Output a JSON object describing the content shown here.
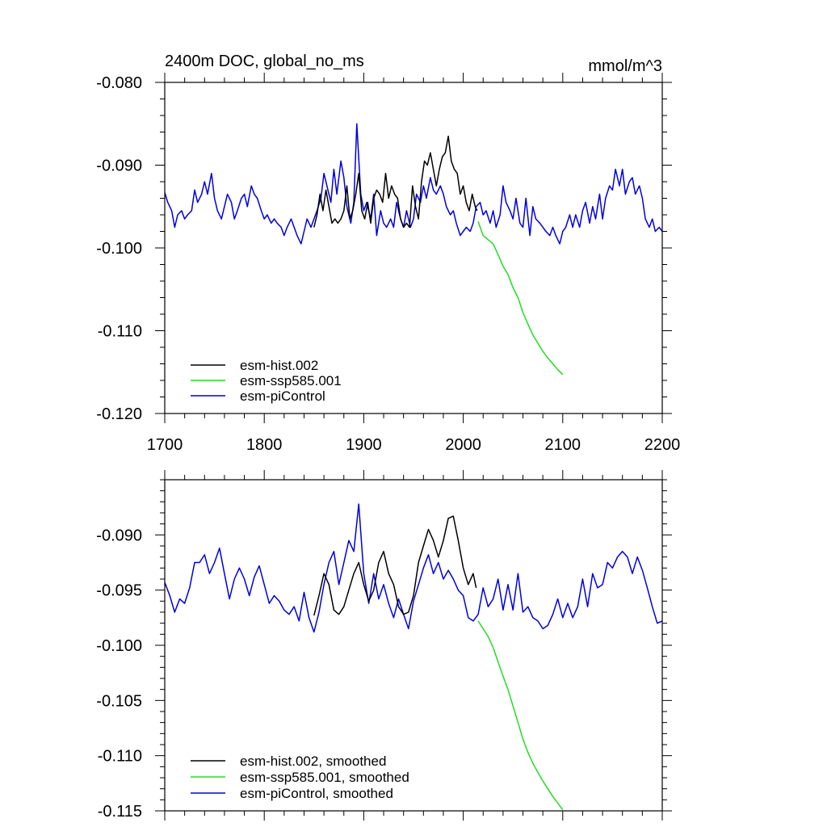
{
  "chart_data": [
    {
      "type": "line",
      "title": "2400m DOC, global_no_ms",
      "units": "mmol/m^3",
      "xlim": [
        1700,
        2200
      ],
      "ylim": [
        -0.12,
        -0.08
      ],
      "xticks": [
        1700,
        1800,
        1900,
        2000,
        2100,
        2200
      ],
      "xtick_labels": [
        "1700",
        "1800",
        "1900",
        "2000",
        "2100",
        "2200"
      ],
      "yticks": [
        -0.08,
        -0.09,
        -0.1,
        -0.11,
        -0.12
      ],
      "ytick_labels": [
        "-0.080",
        "-0.090",
        "-0.100",
        "-0.110",
        "-0.120"
      ],
      "legend_position": "bottom-left",
      "series": [
        {
          "name": "esm-hist.002",
          "color": "#000000",
          "x": [
            1850,
            1853,
            1856,
            1859,
            1862,
            1865,
            1868,
            1871,
            1874,
            1877,
            1880,
            1883,
            1886,
            1889,
            1892,
            1895,
            1898,
            1901,
            1904,
            1907,
            1910,
            1913,
            1916,
            1919,
            1922,
            1925,
            1928,
            1931,
            1934,
            1937,
            1940,
            1943,
            1946,
            1949,
            1952,
            1955,
            1958,
            1961,
            1964,
            1967,
            1970,
            1973,
            1976,
            1979,
            1982,
            1985,
            1988,
            1991,
            1994,
            1997,
            2000,
            2003,
            2006,
            2009,
            2012,
            2014
          ],
          "values": [
            -0.0975,
            -0.096,
            -0.0935,
            -0.0955,
            -0.093,
            -0.095,
            -0.097,
            -0.0965,
            -0.097,
            -0.0965,
            -0.0955,
            -0.0925,
            -0.0965,
            -0.0955,
            -0.0935,
            -0.091,
            -0.0955,
            -0.0965,
            -0.0945,
            -0.097,
            -0.094,
            -0.093,
            -0.0935,
            -0.0945,
            -0.091,
            -0.094,
            -0.0925,
            -0.0935,
            -0.094,
            -0.0965,
            -0.0975,
            -0.097,
            -0.0975,
            -0.0925,
            -0.095,
            -0.0965,
            -0.092,
            -0.0895,
            -0.09,
            -0.0885,
            -0.0905,
            -0.0925,
            -0.0905,
            -0.089,
            -0.0885,
            -0.0865,
            -0.0895,
            -0.0905,
            -0.091,
            -0.0935,
            -0.0925,
            -0.0945,
            -0.0955,
            -0.0935,
            -0.095,
            -0.0955
          ]
        },
        {
          "name": "esm-ssp585.001",
          "color": "#22dd22",
          "x": [
            2015,
            2020,
            2025,
            2030,
            2035,
            2040,
            2045,
            2050,
            2055,
            2060,
            2065,
            2070,
            2075,
            2080,
            2085,
            2090,
            2095,
            2100
          ],
          "values": [
            -0.0968,
            -0.0985,
            -0.099,
            -0.0995,
            -0.1008,
            -0.1022,
            -0.1032,
            -0.1048,
            -0.106,
            -0.1078,
            -0.1092,
            -0.1105,
            -0.1115,
            -0.1125,
            -0.1133,
            -0.114,
            -0.1147,
            -0.1153
          ]
        },
        {
          "name": "esm-piControl",
          "color": "#0000dd",
          "x": [
            1700,
            1703,
            1707,
            1710,
            1713,
            1717,
            1720,
            1723,
            1727,
            1730,
            1733,
            1737,
            1740,
            1743,
            1747,
            1750,
            1753,
            1757,
            1760,
            1763,
            1767,
            1770,
            1773,
            1777,
            1780,
            1783,
            1787,
            1790,
            1793,
            1797,
            1800,
            1803,
            1807,
            1810,
            1813,
            1817,
            1820,
            1823,
            1827,
            1830,
            1833,
            1837,
            1840,
            1843,
            1847,
            1850,
            1853,
            1857,
            1860,
            1863,
            1867,
            1870,
            1873,
            1877,
            1880,
            1883,
            1887,
            1890,
            1893,
            1897,
            1900,
            1903,
            1907,
            1910,
            1913,
            1917,
            1920,
            1923,
            1927,
            1930,
            1933,
            1937,
            1940,
            1943,
            1947,
            1950,
            1953,
            1957,
            1960,
            1963,
            1967,
            1970,
            1973,
            1977,
            1980,
            1983,
            1987,
            1990,
            1993,
            1997,
            2000,
            2003,
            2007,
            2010,
            2013,
            2017,
            2020,
            2023,
            2027,
            2030,
            2033,
            2037,
            2040,
            2043,
            2047,
            2050,
            2053,
            2057,
            2060,
            2063,
            2067,
            2070,
            2073,
            2077,
            2080,
            2083,
            2087,
            2090,
            2093,
            2097,
            2100,
            2103,
            2107,
            2110,
            2113,
            2117,
            2120,
            2123,
            2127,
            2130,
            2133,
            2137,
            2140,
            2143,
            2147,
            2150,
            2153,
            2157,
            2160,
            2163,
            2167,
            2170,
            2173,
            2177,
            2180,
            2183,
            2187,
            2190,
            2193,
            2197,
            2200
          ],
          "values": [
            -0.0933,
            -0.0945,
            -0.0955,
            -0.0975,
            -0.096,
            -0.0955,
            -0.0965,
            -0.096,
            -0.0955,
            -0.093,
            -0.0945,
            -0.0935,
            -0.092,
            -0.0935,
            -0.091,
            -0.094,
            -0.0955,
            -0.0965,
            -0.095,
            -0.0935,
            -0.0945,
            -0.0965,
            -0.0955,
            -0.094,
            -0.0935,
            -0.095,
            -0.0925,
            -0.0935,
            -0.094,
            -0.0955,
            -0.0965,
            -0.096,
            -0.097,
            -0.0965,
            -0.097,
            -0.0975,
            -0.0985,
            -0.0975,
            -0.0965,
            -0.0975,
            -0.0985,
            -0.0995,
            -0.098,
            -0.0965,
            -0.0975,
            -0.0965,
            -0.0955,
            -0.094,
            -0.091,
            -0.0925,
            -0.0945,
            -0.0905,
            -0.0935,
            -0.0895,
            -0.0915,
            -0.095,
            -0.097,
            -0.0945,
            -0.085,
            -0.0935,
            -0.0955,
            -0.0945,
            -0.0965,
            -0.0935,
            -0.0985,
            -0.0955,
            -0.097,
            -0.0975,
            -0.0965,
            -0.0975,
            -0.0945,
            -0.0965,
            -0.0975,
            -0.0955,
            -0.0975,
            -0.0965,
            -0.0935,
            -0.0945,
            -0.0925,
            -0.094,
            -0.0915,
            -0.093,
            -0.0935,
            -0.0925,
            -0.0935,
            -0.095,
            -0.096,
            -0.0955,
            -0.097,
            -0.0985,
            -0.098,
            -0.0975,
            -0.098,
            -0.097,
            -0.095,
            -0.0945,
            -0.096,
            -0.0955,
            -0.097,
            -0.0955,
            -0.0975,
            -0.096,
            -0.0925,
            -0.0945,
            -0.0955,
            -0.0965,
            -0.094,
            -0.097,
            -0.0975,
            -0.094,
            -0.0985,
            -0.095,
            -0.0965,
            -0.097,
            -0.0975,
            -0.098,
            -0.0985,
            -0.0975,
            -0.0985,
            -0.0995,
            -0.098,
            -0.0975,
            -0.096,
            -0.0975,
            -0.096,
            -0.0975,
            -0.0955,
            -0.0945,
            -0.097,
            -0.095,
            -0.0965,
            -0.0935,
            -0.0965,
            -0.094,
            -0.0925,
            -0.093,
            -0.0905,
            -0.0925,
            -0.0905,
            -0.0935,
            -0.092,
            -0.0915,
            -0.0935,
            -0.0925,
            -0.094,
            -0.0965,
            -0.0975,
            -0.0965,
            -0.098,
            -0.0975,
            -0.098
          ]
        }
      ]
    },
    {
      "type": "line",
      "title": "",
      "xlim": [
        1700,
        2200
      ],
      "ylim": [
        -0.115,
        -0.085
      ],
      "yticks": [
        -0.09,
        -0.095,
        -0.1,
        -0.105,
        -0.11,
        -0.115
      ],
      "ytick_labels": [
        "-0.090",
        "-0.095",
        "-0.100",
        "-0.105",
        "-0.110",
        "-0.115"
      ],
      "legend_position": "bottom-left",
      "series": [
        {
          "name": "esm-hist.002, smoothed",
          "color": "#000000",
          "x": [
            1850,
            1855,
            1860,
            1865,
            1870,
            1875,
            1880,
            1885,
            1890,
            1895,
            1900,
            1905,
            1910,
            1915,
            1920,
            1925,
            1930,
            1935,
            1940,
            1945,
            1950,
            1955,
            1960,
            1965,
            1970,
            1975,
            1980,
            1985,
            1990,
            1995,
            2000,
            2005,
            2010,
            2013
          ],
          "values": [
            -0.0973,
            -0.0955,
            -0.0935,
            -0.0945,
            -0.0968,
            -0.0972,
            -0.0965,
            -0.095,
            -0.0935,
            -0.0925,
            -0.0945,
            -0.096,
            -0.095,
            -0.0925,
            -0.0915,
            -0.0935,
            -0.0945,
            -0.0965,
            -0.0972,
            -0.097,
            -0.0955,
            -0.0925,
            -0.091,
            -0.0895,
            -0.0905,
            -0.092,
            -0.0905,
            -0.0885,
            -0.0883,
            -0.0905,
            -0.093,
            -0.0945,
            -0.0935,
            -0.0948
          ]
        },
        {
          "name": "esm-ssp585.001, smoothed",
          "color": "#22dd22",
          "x": [
            2015,
            2020,
            2025,
            2030,
            2035,
            2040,
            2045,
            2050,
            2055,
            2060,
            2065,
            2070,
            2075,
            2080,
            2085,
            2090,
            2095,
            2100
          ],
          "values": [
            -0.0978,
            -0.0985,
            -0.0992,
            -0.1002,
            -0.1015,
            -0.1028,
            -0.104,
            -0.1055,
            -0.107,
            -0.1085,
            -0.1097,
            -0.1107,
            -0.1115,
            -0.1123,
            -0.113,
            -0.1137,
            -0.1143,
            -0.1149
          ]
        },
        {
          "name": "esm-piControl, smoothed",
          "color": "#0000dd",
          "x": [
            1700,
            1705,
            1710,
            1715,
            1720,
            1725,
            1730,
            1735,
            1740,
            1745,
            1750,
            1755,
            1760,
            1765,
            1770,
            1775,
            1780,
            1785,
            1790,
            1795,
            1800,
            1805,
            1810,
            1815,
            1820,
            1825,
            1830,
            1835,
            1840,
            1845,
            1850,
            1855,
            1860,
            1865,
            1870,
            1875,
            1880,
            1885,
            1890,
            1895,
            1900,
            1905,
            1910,
            1915,
            1920,
            1925,
            1930,
            1935,
            1940,
            1945,
            1950,
            1955,
            1960,
            1965,
            1970,
            1975,
            1980,
            1985,
            1990,
            1995,
            2000,
            2005,
            2010,
            2015,
            2020,
            2025,
            2030,
            2035,
            2040,
            2045,
            2050,
            2055,
            2060,
            2065,
            2070,
            2075,
            2080,
            2085,
            2090,
            2095,
            2100,
            2105,
            2110,
            2115,
            2120,
            2125,
            2130,
            2135,
            2140,
            2145,
            2150,
            2155,
            2160,
            2165,
            2170,
            2175,
            2180,
            2185,
            2190,
            2195,
            2200
          ],
          "values": [
            -0.0943,
            -0.0955,
            -0.097,
            -0.0958,
            -0.0962,
            -0.0948,
            -0.0925,
            -0.0925,
            -0.0918,
            -0.0935,
            -0.0925,
            -0.0912,
            -0.0935,
            -0.0958,
            -0.094,
            -0.093,
            -0.094,
            -0.0955,
            -0.0938,
            -0.0928,
            -0.0945,
            -0.0962,
            -0.0955,
            -0.096,
            -0.0968,
            -0.0972,
            -0.0965,
            -0.0978,
            -0.0952,
            -0.0975,
            -0.0988,
            -0.097,
            -0.0945,
            -0.0925,
            -0.0915,
            -0.0945,
            -0.0925,
            -0.0905,
            -0.0915,
            -0.0872,
            -0.0935,
            -0.0962,
            -0.0935,
            -0.0958,
            -0.0945,
            -0.0962,
            -0.0975,
            -0.0958,
            -0.0972,
            -0.0985,
            -0.096,
            -0.0945,
            -0.093,
            -0.0918,
            -0.0935,
            -0.0925,
            -0.094,
            -0.0932,
            -0.094,
            -0.095,
            -0.0955,
            -0.0975,
            -0.0978,
            -0.0972,
            -0.0948,
            -0.0965,
            -0.0958,
            -0.094,
            -0.0968,
            -0.0945,
            -0.0968,
            -0.0935,
            -0.097,
            -0.0965,
            -0.0975,
            -0.0978,
            -0.0985,
            -0.0982,
            -0.0972,
            -0.0958,
            -0.0975,
            -0.0962,
            -0.0975,
            -0.0965,
            -0.094,
            -0.0965,
            -0.0935,
            -0.0948,
            -0.0945,
            -0.0925,
            -0.093,
            -0.092,
            -0.0915,
            -0.092,
            -0.0935,
            -0.092,
            -0.0932,
            -0.0948,
            -0.0965,
            -0.098,
            -0.0978
          ]
        }
      ]
    }
  ]
}
